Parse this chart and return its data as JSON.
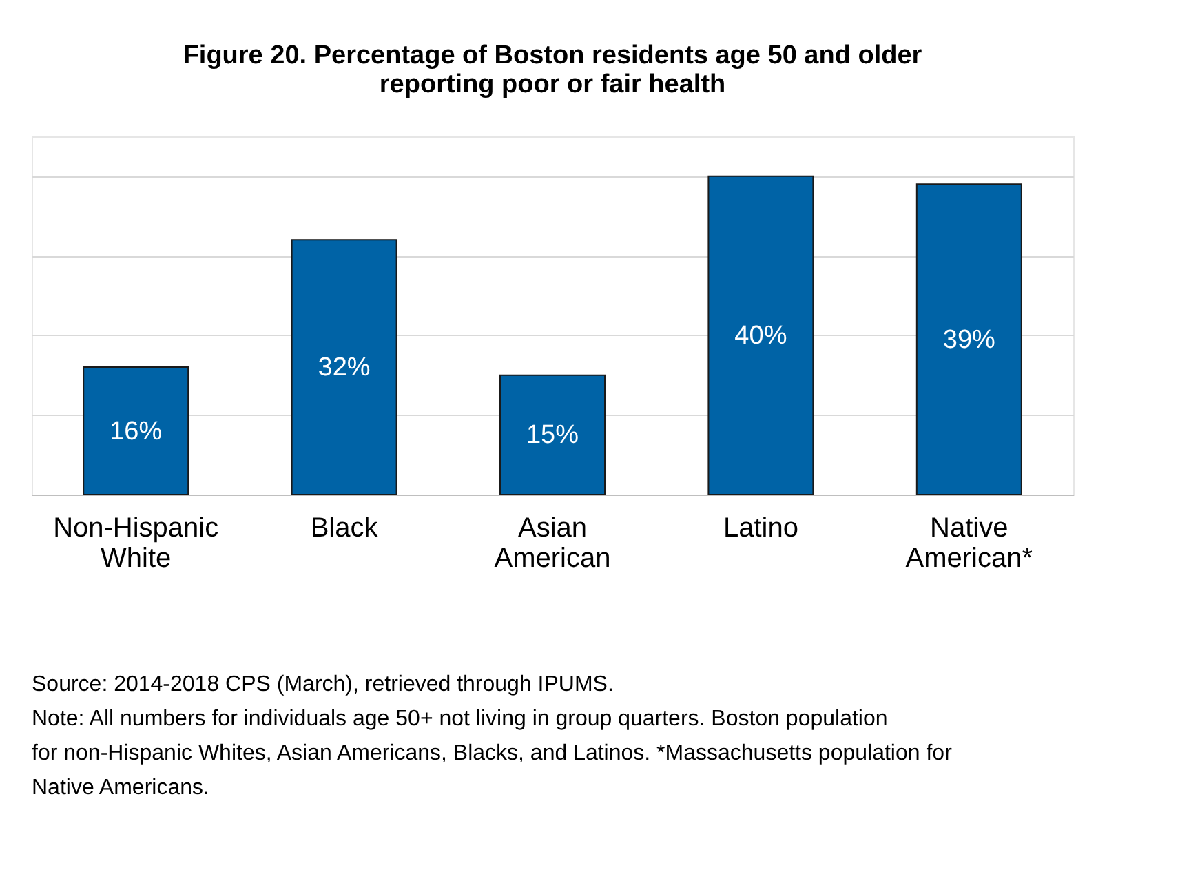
{
  "chart_data": {
    "type": "bar",
    "title": "Figure 20. Percentage of Boston residents age 50 and older reporting poor or fair health",
    "categories": [
      "Non-Hispanic White",
      "Black",
      "Asian American",
      "Latino",
      "Native American*"
    ],
    "values": [
      16,
      32,
      15,
      40,
      39
    ],
    "color": "#0063a6",
    "value_labels": [
      "16%",
      "32%",
      "15%",
      "40%",
      "39%"
    ],
    "ylim": [
      0,
      45
    ],
    "yticks": [
      {
        "value": 0,
        "label": null
      },
      {
        "value": 10,
        "label": null
      },
      {
        "value": 20,
        "label": null
      },
      {
        "value": 30,
        "label": null
      },
      {
        "value": 40,
        "label": null
      }
    ],
    "grid": "y",
    "tick_labels": "x",
    "annotations": [
      "Source: 2014-2018 CPS (March), retrieved through IPUMS.",
      "Note: All numbers for individuals age 50+ not living in group quarters. Boston population for non-Hispanic Whites, Asian Americans, Blacks, and Latinos. *Massachusetts population for Native Americans."
    ]
  }
}
